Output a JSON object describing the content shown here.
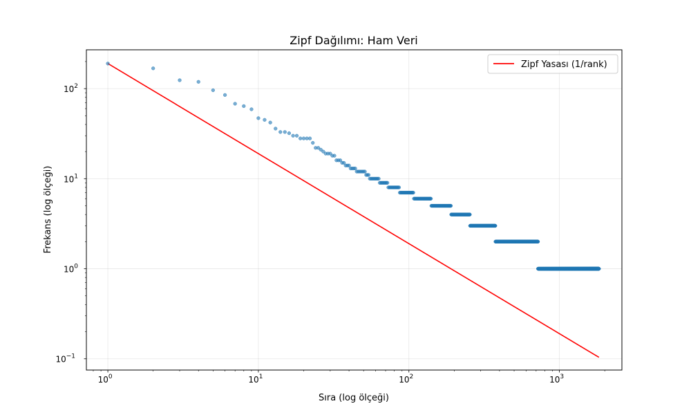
{
  "chart_data": {
    "type": "scatter",
    "title": "Zipf Dağılımı: Ham Veri",
    "xlabel": "Sıra (log ölçeği)",
    "ylabel": "Frekans (log ölçeği)",
    "xscale": "log",
    "yscale": "log",
    "xlim": [
      0.72,
      2600
    ],
    "ylim": [
      0.075,
      270
    ],
    "grid": true,
    "legend_position": "top-right",
    "x_ticks": [
      {
        "value": 1,
        "base": "10",
        "exp": "0"
      },
      {
        "value": 10,
        "base": "10",
        "exp": "1"
      },
      {
        "value": 100,
        "base": "10",
        "exp": "2"
      },
      {
        "value": 1000,
        "base": "10",
        "exp": "3"
      }
    ],
    "y_ticks": [
      {
        "value": 0.1,
        "base": "10",
        "exp": "−1"
      },
      {
        "value": 1,
        "base": "10",
        "exp": "0"
      },
      {
        "value": 10,
        "base": "10",
        "exp": "1"
      },
      {
        "value": 100,
        "base": "10",
        "exp": "2"
      }
    ],
    "series": [
      {
        "name": "",
        "kind": "scatter",
        "color": "#1f77b4",
        "points": [
          [
            1,
            190
          ],
          [
            2,
            168
          ],
          [
            3,
            124
          ],
          [
            4,
            119
          ],
          [
            5,
            96
          ],
          [
            6,
            85
          ],
          [
            7,
            68
          ],
          [
            8,
            64
          ],
          [
            9,
            59
          ],
          [
            10,
            47
          ],
          [
            11,
            45
          ],
          [
            12,
            42
          ],
          [
            13,
            36
          ],
          [
            14,
            33
          ],
          [
            15,
            33
          ],
          [
            16,
            32
          ],
          [
            17,
            30
          ],
          [
            18,
            30
          ],
          [
            19,
            28
          ],
          [
            20,
            28
          ],
          [
            21,
            28
          ],
          [
            22,
            28
          ],
          [
            23,
            25
          ],
          [
            24,
            22
          ],
          [
            25,
            22
          ],
          [
            26,
            21
          ],
          [
            27,
            20
          ],
          [
            28,
            19
          ],
          [
            29,
            19
          ],
          [
            30,
            19
          ],
          [
            31,
            18
          ],
          [
            32,
            18
          ],
          [
            33,
            16
          ],
          [
            34,
            16
          ],
          [
            35,
            16
          ],
          [
            36,
            15
          ],
          [
            37,
            15
          ],
          [
            38,
            14
          ],
          [
            39,
            14
          ],
          [
            40,
            14
          ],
          [
            41,
            13
          ],
          [
            42,
            13
          ],
          [
            43,
            13
          ],
          [
            44,
            13
          ]
        ],
        "runs": [
          {
            "from": 45,
            "to": 51,
            "y": 12
          },
          {
            "from": 52,
            "to": 54,
            "y": 11
          },
          {
            "from": 55,
            "to": 63,
            "y": 10
          },
          {
            "from": 64,
            "to": 72,
            "y": 9
          },
          {
            "from": 73,
            "to": 86,
            "y": 8
          },
          {
            "from": 87,
            "to": 107,
            "y": 7
          },
          {
            "from": 108,
            "to": 140,
            "y": 6
          },
          {
            "from": 141,
            "to": 190,
            "y": 5
          },
          {
            "from": 191,
            "to": 254,
            "y": 4
          },
          {
            "from": 255,
            "to": 375,
            "y": 3
          },
          {
            "from": 376,
            "to": 720,
            "y": 2
          },
          {
            "from": 721,
            "to": 1830,
            "y": 1
          }
        ]
      },
      {
        "name": "Zipf Yasası (1/rank)",
        "kind": "line",
        "color": "#ff0000",
        "x_start": 1,
        "x_end": 1830,
        "y_at_1": 190
      }
    ]
  }
}
